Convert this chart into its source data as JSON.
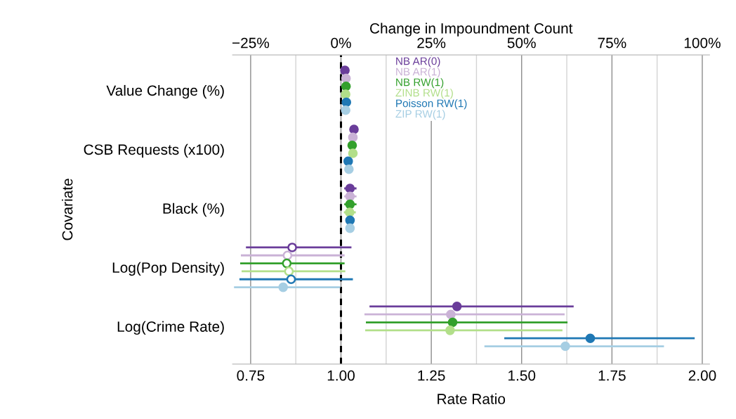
{
  "chart_data": {
    "type": "scatter",
    "orientation": "horizontal",
    "xlabel": "Rate Ratio",
    "ylabel": "Covariate",
    "x2label": "Change in Impoundment Count",
    "categories": [
      "Value Change (%)",
      "CSB Requests (x100)",
      "Black (%)",
      "Log(Pop Density)",
      "Log(Crime Rate)"
    ],
    "series": [
      {
        "name": "NB AR(0)",
        "color": "#6a3d9a",
        "values": [
          1.011,
          1.036,
          1.025,
          0.865,
          1.321
        ],
        "errors": [
          null,
          null,
          [
            1.009,
            1.043
          ],
          [
            0.737,
            1.029
          ],
          [
            1.079,
            1.644
          ]
        ]
      },
      {
        "name": "NB AR(1)",
        "color": "#cab2d6",
        "values": [
          1.014,
          1.033,
          1.025,
          0.852,
          1.304
        ],
        "errors": [
          null,
          null,
          [
            1.009,
            1.043
          ],
          [
            0.723,
            1.01
          ],
          [
            1.065,
            1.619
          ]
        ]
      },
      {
        "name": "NB RW(1)",
        "color": "#33a02c",
        "values": [
          1.014,
          1.031,
          1.025,
          0.85,
          1.309
        ],
        "errors": [
          null,
          [
            1.027,
            1.036
          ],
          [
            1.009,
            1.043
          ],
          [
            0.721,
            1.01
          ],
          [
            1.069,
            1.627
          ]
        ]
      },
      {
        "name": "ZINB RW(1)",
        "color": "#b2df8a",
        "values": [
          1.013,
          1.033,
          1.024,
          0.856,
          1.302
        ],
        "errors": [
          null,
          null,
          [
            1.008,
            1.041
          ],
          [
            0.725,
            1.012
          ],
          [
            1.067,
            1.613
          ]
        ]
      },
      {
        "name": "Poisson RW(1)",
        "color": "#1f78b4",
        "values": [
          1.015,
          1.02,
          1.025,
          0.862,
          1.69
        ],
        "errors": [
          null,
          null,
          [
            1.016,
            1.038
          ],
          [
            0.719,
            1.033
          ],
          [
            1.452,
            1.979
          ]
        ]
      },
      {
        "name": "ZIP RW(1)",
        "color": "#a6cee3",
        "values": [
          1.013,
          1.022,
          1.025,
          0.84,
          1.621
        ],
        "errors": [
          null,
          null,
          [
            1.018,
            1.035
          ],
          [
            0.704,
            0.998
          ],
          [
            1.397,
            1.894
          ]
        ]
      }
    ],
    "xlim": [
      0.7,
      2.02
    ],
    "xticks": [
      {
        "value": 0.75,
        "label": "0.75"
      },
      {
        "value": 0.875,
        "label": null
      },
      {
        "value": 1.0,
        "label": "1.00"
      },
      {
        "value": 1.125,
        "label": null
      },
      {
        "value": 1.25,
        "label": "1.25"
      },
      {
        "value": 1.375,
        "label": null
      },
      {
        "value": 1.5,
        "label": "1.50"
      },
      {
        "value": 1.625,
        "label": null
      },
      {
        "value": 1.75,
        "label": "1.75"
      },
      {
        "value": 1.875,
        "label": null
      },
      {
        "value": 2.0,
        "label": "2.00"
      }
    ],
    "x2lim": [
      -30,
      102
    ],
    "x2ticks": [
      {
        "value": -25,
        "label": "−25%"
      },
      {
        "value": 0,
        "label": "0%"
      },
      {
        "value": 25,
        "label": "25%"
      },
      {
        "value": 50,
        "label": "50%"
      },
      {
        "value": 75,
        "label": "75%"
      },
      {
        "value": 100,
        "label": "100%"
      }
    ],
    "ref_lines": [
      {
        "axis": "x",
        "value": 1.0,
        "label": null,
        "color": "#000000",
        "line_style": "dashed"
      }
    ],
    "grid": "x",
    "legend": "top",
    "marker": "circle"
  }
}
